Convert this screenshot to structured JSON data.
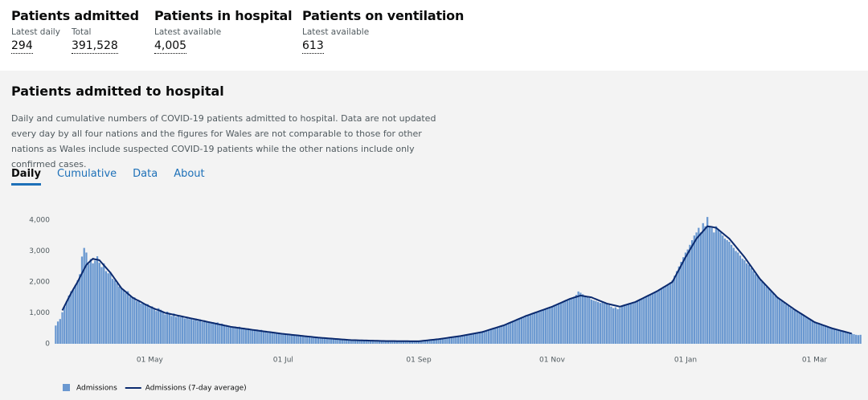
{
  "summary": [
    {
      "title": "Patients admitted",
      "metrics": [
        {
          "label": "Latest daily",
          "value": "294"
        },
        {
          "label": "Total",
          "value": "391,528"
        }
      ]
    },
    {
      "title": "Patients in hospital",
      "metrics": [
        {
          "label": "Latest available",
          "value": "4,005"
        }
      ]
    },
    {
      "title": "Patients on ventilation",
      "metrics": [
        {
          "label": "Latest available",
          "value": "613"
        }
      ]
    }
  ],
  "section": {
    "title": "Patients admitted to hospital",
    "description": "Daily and cumulative numbers of COVID-19 patients admitted to hospital. Data are not updated every day by all four nations and the figures for Wales are not comparable to those for other nations as Wales include suspected COVID-19 patients while the other nations include only confirmed cases.",
    "tabs": [
      "Daily",
      "Cumulative",
      "Data",
      "About"
    ]
  },
  "chart_data": {
    "type": "bar",
    "categories": [
      null,
      null,
      null,
      null,
      null,
      null,
      null,
      null,
      null,
      null,
      null,
      null,
      null,
      null,
      null,
      null,
      null,
      null,
      null,
      null,
      null,
      null,
      null,
      null,
      null,
      null,
      null,
      null,
      null,
      null,
      null,
      null,
      null,
      null,
      null,
      null,
      null,
      null,
      null,
      null,
      null,
      null,
      null,
      "01 May",
      null,
      null,
      null,
      null,
      null,
      null,
      null,
      null,
      null,
      null,
      null,
      null,
      null,
      null,
      null,
      null,
      null,
      null,
      null,
      null,
      null,
      null,
      null,
      null,
      null,
      null,
      null,
      null,
      null,
      null,
      null,
      null,
      null,
      null,
      null,
      null,
      null,
      null,
      null,
      null,
      null,
      null,
      null,
      null,
      null,
      null,
      null,
      null,
      null,
      null,
      null,
      null,
      null,
      null,
      null,
      null,
      null,
      null,
      null,
      null,
      "01 Jul",
      null,
      null,
      null,
      null,
      null,
      null,
      null,
      null,
      null,
      null,
      null,
      null,
      null,
      null,
      null,
      null,
      null,
      null,
      null,
      null,
      null,
      null,
      null,
      null,
      null,
      null,
      null,
      null,
      null,
      null,
      null,
      null,
      null,
      null,
      null,
      null,
      null,
      null,
      null,
      null,
      null,
      null,
      null,
      null,
      null,
      null,
      null,
      null,
      null,
      null,
      null,
      null,
      null,
      null,
      null,
      null,
      null,
      null,
      null,
      null,
      null,
      "01 Sep",
      null,
      null,
      null,
      null,
      null,
      null,
      null,
      null,
      null,
      null,
      null,
      null,
      null,
      null,
      null,
      null,
      null,
      null,
      null,
      null,
      null,
      null,
      null,
      null,
      null,
      null,
      null,
      null,
      null,
      null,
      null,
      null,
      null,
      null,
      null,
      null,
      null,
      null,
      null,
      null,
      null,
      null,
      null,
      null,
      null,
      null,
      null,
      null,
      null,
      null,
      null,
      null,
      null,
      null,
      null,
      null,
      null,
      null,
      null,
      null,
      "01 Nov",
      null,
      null,
      null,
      null,
      null,
      null,
      null,
      null,
      null,
      null,
      null,
      null,
      null,
      null,
      null,
      null,
      null,
      null,
      null,
      null,
      null,
      null,
      null,
      null,
      null,
      null,
      null,
      null,
      null,
      null,
      null,
      null,
      null,
      null,
      null,
      null,
      null,
      null,
      null,
      null,
      null,
      null,
      null,
      null,
      null,
      null,
      null,
      null,
      null,
      null,
      null,
      null,
      null,
      null,
      null,
      null,
      null,
      null,
      null,
      null,
      "01 Jan",
      null,
      null,
      null,
      null,
      null,
      null,
      null,
      null,
      null,
      null,
      null,
      null,
      null,
      null,
      null,
      null,
      null,
      null,
      null,
      null,
      null,
      null,
      null,
      null,
      null,
      null,
      null,
      null,
      null,
      null,
      null,
      null,
      null,
      null,
      null,
      null,
      null,
      null,
      null,
      null,
      null,
      null,
      null,
      null,
      null,
      null,
      null,
      null,
      null,
      null,
      null,
      null,
      null,
      null,
      null,
      null,
      null,
      null,
      "01 Mar",
      null,
      null,
      null,
      null,
      null,
      null,
      null,
      null,
      null,
      null,
      null,
      null,
      null,
      null,
      null,
      null,
      null,
      null,
      null,
      null,
      null
    ],
    "series": [
      {
        "name": "Admissions",
        "color": "#6a98d0",
        "values": [
          590,
          720,
          800,
          1020,
          1200,
          1380,
          1560,
          1700,
          1740,
          1900,
          2050,
          2250,
          2820,
          3100,
          2950,
          2580,
          2740,
          2600,
          2690,
          2830,
          2620,
          2480,
          2600,
          2350,
          2280,
          2320,
          2100,
          2050,
          1960,
          1850,
          1800,
          1750,
          1640,
          1700,
          1520,
          1480,
          1500,
          1380,
          1400,
          1300,
          1330,
          1250,
          1280,
          1160,
          1210,
          1140,
          1060,
          1150,
          1100,
          1020,
          950,
          1040,
          960,
          900,
          980,
          870,
          920,
          860,
          900,
          820,
          870,
          800,
          840,
          770,
          820,
          740,
          790,
          710,
          760,
          690,
          720,
          670,
          700,
          640,
          690,
          610,
          650,
          580,
          610,
          540,
          570,
          530,
          560,
          510,
          550,
          490,
          520,
          470,
          500,
          440,
          470,
          430,
          460,
          410,
          450,
          390,
          420,
          370,
          400,
          350,
          380,
          340,
          360,
          310,
          330,
          300,
          320,
          280,
          310,
          270,
          290,
          260,
          280,
          240,
          260,
          220,
          240,
          200,
          230,
          190,
          210,
          180,
          200,
          170,
          190,
          160,
          180,
          150,
          170,
          140,
          160,
          130,
          150,
          120,
          140,
          110,
          130,
          105,
          125,
          100,
          120,
          95,
          110,
          90,
          105,
          88,
          100,
          85,
          98,
          84,
          95,
          82,
          92,
          80,
          90,
          78,
          88,
          76,
          86,
          75,
          85,
          74,
          84,
          73,
          82,
          72,
          80,
          95,
          100,
          108,
          115,
          122,
          130,
          138,
          146,
          155,
          165,
          172,
          185,
          195,
          205,
          218,
          230,
          240,
          255,
          265,
          280,
          290,
          300,
          310,
          320,
          335,
          345,
          360,
          372,
          390,
          410,
          425,
          445,
          470,
          490,
          510,
          540,
          560,
          585,
          610,
          640,
          665,
          700,
          730,
          760,
          790,
          820,
          860,
          880,
          920,
          940,
          960,
          990,
          1010,
          1040,
          1060,
          1090,
          1110,
          1140,
          1160,
          1200,
          1220,
          1260,
          1280,
          1300,
          1330,
          1360,
          1400,
          1430,
          1460,
          1480,
          1520,
          1580,
          1690,
          1650,
          1600,
          1560,
          1500,
          1480,
          1430,
          1400,
          1380,
          1350,
          1320,
          1340,
          1300,
          1280,
          1250,
          1200,
          1150,
          1180,
          1120,
          1160,
          1200,
          1230,
          1250,
          1280,
          1300,
          1320,
          1350,
          1380,
          1420,
          1450,
          1480,
          1520,
          1560,
          1590,
          1630,
          1680,
          1720,
          1760,
          1800,
          1850,
          1880,
          1930,
          1980,
          2050,
          2200,
          2350,
          2500,
          2650,
          2800,
          2950,
          3050,
          3200,
          3350,
          3500,
          3600,
          3750,
          3600,
          3900,
          3800,
          4100,
          3800,
          3750,
          3600,
          3800,
          3700,
          3600,
          3500,
          3400,
          3350,
          3300,
          3200,
          3100,
          3000,
          2950,
          2850,
          2750,
          2700,
          2600,
          2550,
          2450,
          2350,
          2250,
          2200,
          2100,
          2000,
          1950,
          1850,
          1800,
          1700,
          1650,
          1550,
          1500,
          1440,
          1380,
          1330,
          1270,
          1220,
          1170,
          1120,
          1080,
          1040,
          1000,
          960,
          920,
          880,
          840,
          800,
          760,
          720,
          690,
          660,
          640,
          610,
          590,
          560,
          540,
          510,
          490,
          470,
          450,
          430,
          410,
          390,
          370,
          350,
          330,
          310,
          290,
          280,
          290
        ]
      },
      {
        "name": "Admissions (7-day average)",
        "type": "line",
        "color": "#0b2a6e",
        "values": [
          null,
          null,
          null,
          1080,
          1220,
          1360,
          1500,
          1630,
          1760,
          1880,
          2000,
          2140,
          2280,
          2420,
          2550,
          2620,
          2690,
          2750,
          2730,
          2720,
          2700,
          2620,
          2540,
          2460,
          2380,
          2300,
          2200,
          2100,
          2000,
          1900,
          1800,
          1740,
          1680,
          1620,
          1560,
          1500,
          1460,
          1420,
          1390,
          1350,
          1310,
          1270,
          1240,
          1200,
          1170,
          1140,
          1110,
          1090,
          1060,
          1030,
          1000,
          985,
          970,
          955,
          940,
          925,
          910,
          895,
          880,
          865,
          850,
          835,
          820,
          805,
          790,
          775,
          760,
          745,
          730,
          715,
          700,
          685,
          670,
          655,
          640,
          625,
          610,
          595,
          580,
          565,
          550,
          540,
          530,
          520,
          510,
          500,
          490,
          480,
          470,
          460,
          450,
          441,
          432,
          422,
          413,
          404,
          394,
          385,
          376,
          366,
          357,
          348,
          338,
          329,
          320,
          313,
          305,
          298,
          290,
          283,
          275,
          268,
          260,
          253,
          245,
          238,
          230,
          223,
          215,
          208,
          200,
          195,
          189,
          184,
          179,
          173,
          168,
          163,
          157,
          152,
          147,
          141,
          136,
          131,
          125,
          120,
          118,
          116,
          114,
          112,
          110,
          108,
          106,
          104,
          102,
          100,
          98,
          96,
          94,
          92,
          90,
          89,
          89,
          88,
          87,
          87,
          86,
          85,
          85,
          84,
          83,
          83,
          82,
          81,
          81,
          80,
          80,
          88,
          96,
          103,
          111,
          119,
          127,
          134,
          142,
          150,
          160,
          170,
          180,
          190,
          200,
          210,
          220,
          230,
          240,
          250,
          263,
          276,
          289,
          302,
          315,
          328,
          341,
          354,
          367,
          380,
          402,
          424,
          446,
          468,
          490,
          512,
          534,
          556,
          578,
          600,
          630,
          660,
          690,
          720,
          750,
          780,
          810,
          840,
          870,
          900,
          925,
          950,
          975,
          1000,
          1025,
          1050,
          1075,
          1100,
          1125,
          1150,
          1175,
          1200,
          1231,
          1263,
          1294,
          1325,
          1356,
          1388,
          1419,
          1450,
          1472,
          1494,
          1516,
          1538,
          1560,
          1548,
          1536,
          1524,
          1512,
          1500,
          1471,
          1443,
          1414,
          1386,
          1357,
          1329,
          1300,
          1283,
          1267,
          1250,
          1233,
          1217,
          1200,
          1221,
          1243,
          1264,
          1286,
          1307,
          1329,
          1350,
          1385,
          1420,
          1455,
          1490,
          1525,
          1560,
          1595,
          1630,
          1665,
          1700,
          1743,
          1786,
          1829,
          1871,
          1914,
          1957,
          2000,
          2133,
          2267,
          2400,
          2533,
          2667,
          2800,
          2920,
          3040,
          3160,
          3280,
          3400,
          3480,
          3560,
          3640,
          3720,
          3800,
          3790,
          3780,
          3765,
          3750,
          3692,
          3633,
          3575,
          3517,
          3458,
          3400,
          3314,
          3229,
          3143,
          3057,
          2971,
          2886,
          2800,
          2700,
          2600,
          2500,
          2400,
          2300,
          2200,
          2100,
          2025,
          1950,
          1875,
          1800,
          1725,
          1650,
          1575,
          1500,
          1450,
          1400,
          1350,
          1300,
          1250,
          1200,
          1150,
          1100,
          1056,
          1011,
          967,
          922,
          878,
          833,
          789,
          744,
          700,
          675,
          650,
          625,
          600,
          575,
          550,
          525,
          500,
          481,
          462,
          443,
          424,
          406,
          387,
          368,
          349,
          330,
          null,
          null,
          null,
          null
        ]
      }
    ],
    "ylim": [
      0,
      4000
    ],
    "yticks": [
      0,
      {
        "value": 1000,
        "label": "1,000"
      },
      {
        "value": 2000,
        "label": "2,000"
      },
      {
        "value": 3000,
        "label": "3,000"
      },
      {
        "value": 4000,
        "label": "4,000"
      }
    ],
    "grid": false,
    "legend": "bottom-left"
  }
}
